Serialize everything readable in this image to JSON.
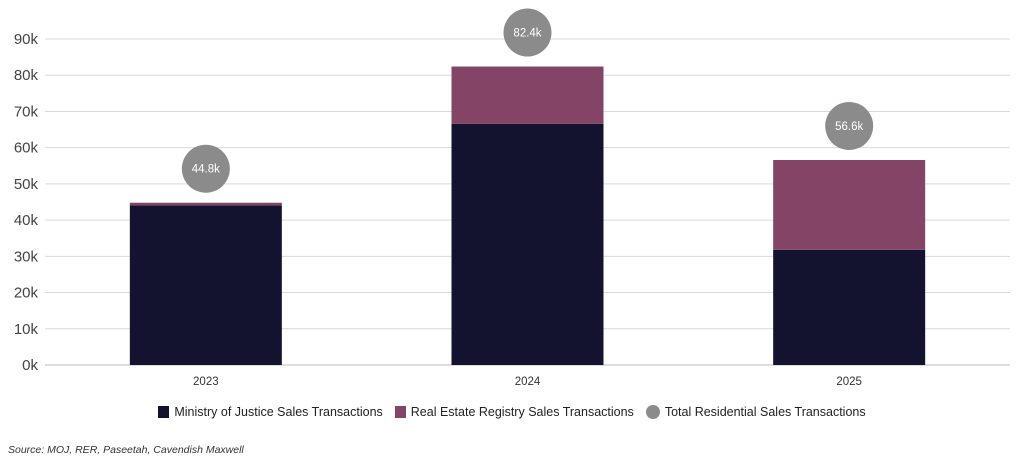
{
  "chart_data": {
    "type": "bar",
    "stacked": true,
    "title": "",
    "xlabel": "",
    "ylabel": "",
    "categories": [
      "2023",
      "2024",
      "2025"
    ],
    "series": [
      {
        "name": "Ministry of Justice Sales Transactions",
        "values": [
          44.1,
          66.6,
          31.8
        ],
        "color": "#14132f"
      },
      {
        "name": "Real Estate Registry Sales Transactions",
        "values": [
          0.7,
          15.8,
          24.8
        ],
        "color": "#834466"
      }
    ],
    "totals": {
      "name": "Total Residential Sales Transactions",
      "labels": [
        "44.8k",
        "82.4k",
        "56.6k"
      ],
      "values": [
        44.8,
        82.4,
        56.6
      ],
      "color": "#8c8b8c"
    },
    "ylim": [
      0,
      90
    ],
    "yticks": [
      0,
      10,
      20,
      30,
      40,
      50,
      60,
      70,
      80,
      90
    ],
    "ytick_labels": [
      "0k",
      "10k",
      "20k",
      "30k",
      "40k",
      "50k",
      "60k",
      "70k",
      "80k",
      "90k"
    ],
    "grid": true,
    "legend_position": "bottom"
  },
  "source": "Source: MOJ, RER, Paseetah, Cavendish Maxwell"
}
